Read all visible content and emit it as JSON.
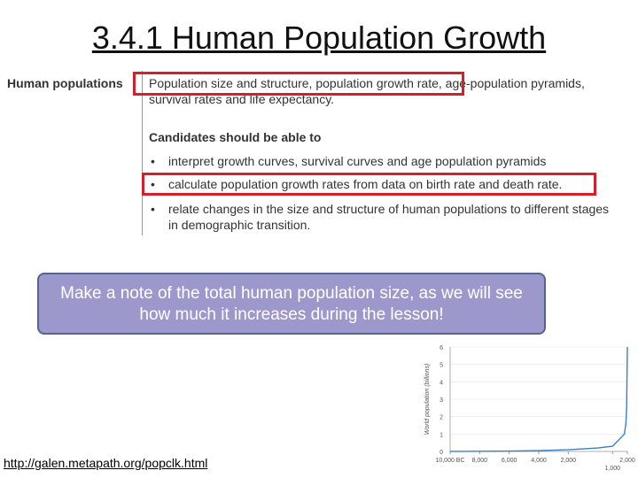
{
  "header": {
    "title": "3.4.1 Human Population Growth"
  },
  "syllabus": {
    "topic": "Human populations",
    "content_highlighted": "Population size and structure, population growth rate,",
    "content_rest_line1": "age-population pyramids,",
    "content_line2": "survival rates and life expectancy.",
    "skills_heading": "Candidates should be able to",
    "bullets": [
      [
        "interpret growth curves, survival curves and age population pyramids"
      ],
      [
        "calculate population growth rates from data on birth rate and death rate."
      ],
      [
        "relate changes in the size and structure of human populations to different stages",
        "in demographic transition."
      ]
    ]
  },
  "callout": {
    "text": "Make a note of the total human population size, as we will see how much it increases during the lesson!"
  },
  "link": {
    "text": "http://galen.metapath.org/popclk.html"
  },
  "population_chart": {
    "type": "line",
    "y_axis_label": "World population (billions)",
    "x": [
      -10000,
      -8000,
      -6000,
      -4000,
      -2000,
      0,
      1000,
      1800,
      1900,
      1950,
      2000
    ],
    "values": [
      0.005,
      0.01,
      0.02,
      0.05,
      0.1,
      0.2,
      0.3,
      1,
      1.6,
      2.5,
      6
    ],
    "color": "#3a7fc4",
    "xlim": [
      -10000,
      2000
    ],
    "ylim": [
      0,
      6
    ],
    "yticks": [
      0,
      1,
      2,
      3,
      4,
      5,
      6
    ],
    "xticks": [
      {
        "value": -10000,
        "label": "10,000 BC"
      },
      {
        "value": -8000,
        "label": "8,000"
      },
      {
        "value": -6000,
        "label": "6,000"
      },
      {
        "value": -4000,
        "label": "4,000"
      },
      {
        "value": -2000,
        "label": "2,000"
      },
      {
        "value": 2000,
        "label": "2,000"
      }
    ],
    "extra_xtick": {
      "value": 1000,
      "label": "1,000"
    }
  }
}
